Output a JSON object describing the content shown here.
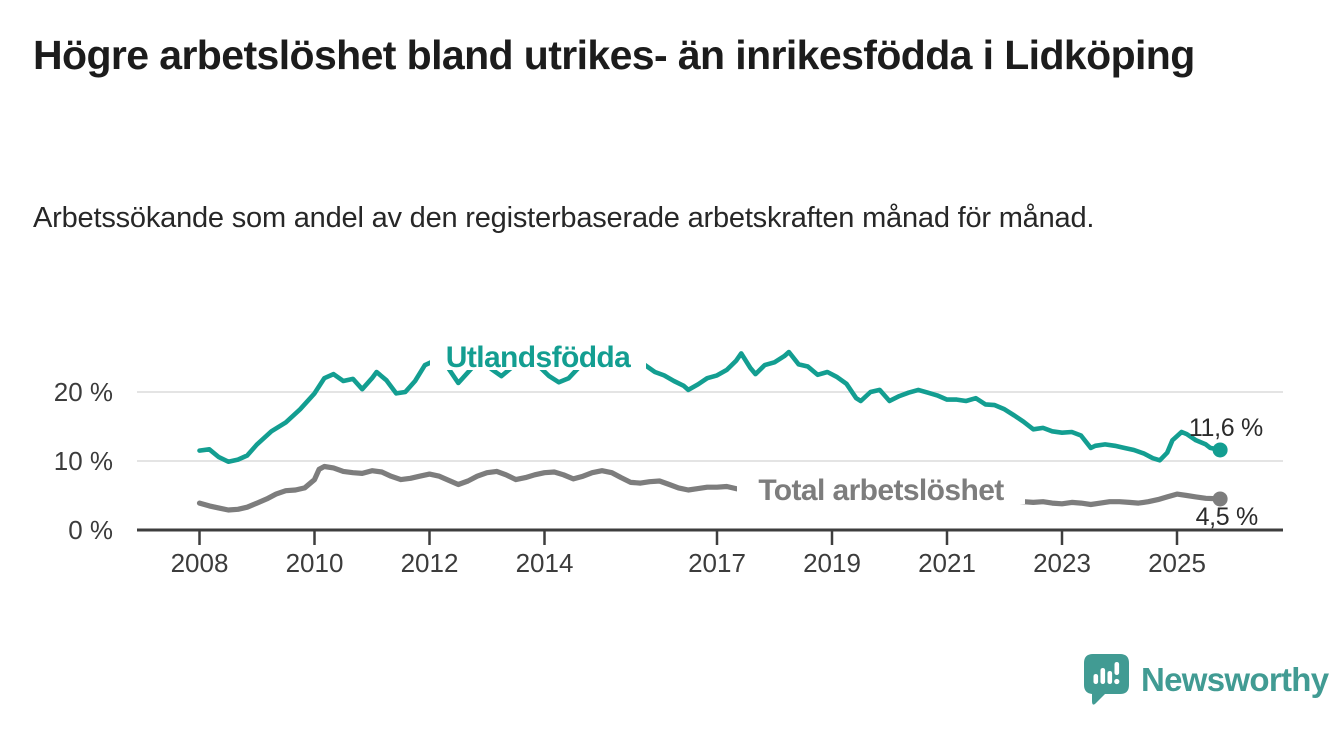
{
  "chart_data": {
    "type": "line",
    "title": "Högre arbetslöshet bland utrikes- än inrikesfödda i Lidköping",
    "subtitle": "Arbetssökande som andel av den registerbaserade arbetskraften månad för månad.",
    "grid": "horizontal",
    "legend_position": "inline-labels",
    "x_axis": {
      "ticks": [
        2008,
        2010,
        2012,
        2014,
        2017,
        2019,
        2021,
        2023,
        2025
      ],
      "range": [
        2007.9,
        2026.3
      ]
    },
    "y_axis": {
      "unit": "%",
      "tick_labels": [
        "0 %",
        "10 %",
        "20 %"
      ],
      "tick_values": [
        0,
        10,
        20
      ],
      "range": [
        0,
        27.5
      ]
    },
    "series": [
      {
        "name": "Utlandsfödda",
        "color": "#139e91",
        "end_label": "11,6 %",
        "end_value": 11.6,
        "points": [
          [
            2008.0,
            11.5
          ],
          [
            2008.17,
            11.7
          ],
          [
            2008.33,
            10.6
          ],
          [
            2008.5,
            9.9
          ],
          [
            2008.67,
            10.2
          ],
          [
            2008.83,
            10.8
          ],
          [
            2009.0,
            12.4
          ],
          [
            2009.25,
            14.3
          ],
          [
            2009.5,
            15.6
          ],
          [
            2009.75,
            17.5
          ],
          [
            2010.0,
            19.8
          ],
          [
            2010.17,
            22.0
          ],
          [
            2010.33,
            22.6
          ],
          [
            2010.5,
            21.6
          ],
          [
            2010.67,
            21.9
          ],
          [
            2010.83,
            20.4
          ],
          [
            2011.0,
            22.0
          ],
          [
            2011.08,
            22.9
          ],
          [
            2011.25,
            21.7
          ],
          [
            2011.42,
            19.8
          ],
          [
            2011.58,
            20.0
          ],
          [
            2011.75,
            21.6
          ],
          [
            2011.92,
            23.9
          ],
          [
            2012.08,
            24.5
          ],
          [
            2012.25,
            24.4
          ],
          [
            2012.5,
            21.3
          ],
          [
            2012.75,
            23.6
          ],
          [
            2012.92,
            24.3
          ],
          [
            2013.08,
            23.3
          ],
          [
            2013.25,
            22.3
          ],
          [
            2013.42,
            23.5
          ],
          [
            2013.58,
            24.4
          ],
          [
            2013.75,
            24.3
          ],
          [
            2013.92,
            23.6
          ],
          [
            2014.08,
            22.3
          ],
          [
            2014.25,
            21.4
          ],
          [
            2014.42,
            22.0
          ],
          [
            2014.58,
            23.4
          ],
          [
            2014.75,
            24.4
          ],
          [
            2014.92,
            24.6
          ],
          [
            2015.08,
            24.2
          ],
          [
            2015.25,
            24.5
          ],
          [
            2015.42,
            24.4
          ],
          [
            2015.58,
            24.6
          ],
          [
            2015.75,
            23.9
          ],
          [
            2015.92,
            22.9
          ],
          [
            2016.08,
            22.4
          ],
          [
            2016.25,
            21.6
          ],
          [
            2016.42,
            20.9
          ],
          [
            2016.5,
            20.3
          ],
          [
            2016.67,
            21.1
          ],
          [
            2016.83,
            22.0
          ],
          [
            2017.0,
            22.4
          ],
          [
            2017.17,
            23.2
          ],
          [
            2017.33,
            24.5
          ],
          [
            2017.42,
            25.6
          ],
          [
            2017.58,
            23.5
          ],
          [
            2017.67,
            22.6
          ],
          [
            2017.83,
            23.9
          ],
          [
            2018.0,
            24.3
          ],
          [
            2018.17,
            25.2
          ],
          [
            2018.25,
            25.8
          ],
          [
            2018.42,
            24.0
          ],
          [
            2018.58,
            23.7
          ],
          [
            2018.75,
            22.5
          ],
          [
            2018.92,
            22.9
          ],
          [
            2019.08,
            22.2
          ],
          [
            2019.25,
            21.2
          ],
          [
            2019.42,
            19.1
          ],
          [
            2019.5,
            18.7
          ],
          [
            2019.67,
            20.0
          ],
          [
            2019.83,
            20.3
          ],
          [
            2020.0,
            18.7
          ],
          [
            2020.17,
            19.4
          ],
          [
            2020.33,
            19.9
          ],
          [
            2020.5,
            20.3
          ],
          [
            2020.67,
            19.9
          ],
          [
            2020.83,
            19.5
          ],
          [
            2021.0,
            18.9
          ],
          [
            2021.17,
            18.9
          ],
          [
            2021.33,
            18.7
          ],
          [
            2021.5,
            19.1
          ],
          [
            2021.67,
            18.2
          ],
          [
            2021.83,
            18.1
          ],
          [
            2022.0,
            17.5
          ],
          [
            2022.17,
            16.6
          ],
          [
            2022.33,
            15.7
          ],
          [
            2022.5,
            14.6
          ],
          [
            2022.67,
            14.8
          ],
          [
            2022.83,
            14.3
          ],
          [
            2023.0,
            14.1
          ],
          [
            2023.17,
            14.2
          ],
          [
            2023.33,
            13.7
          ],
          [
            2023.5,
            11.9
          ],
          [
            2023.58,
            12.2
          ],
          [
            2023.75,
            12.4
          ],
          [
            2023.92,
            12.2
          ],
          [
            2024.08,
            11.9
          ],
          [
            2024.25,
            11.6
          ],
          [
            2024.42,
            11.1
          ],
          [
            2024.58,
            10.4
          ],
          [
            2024.7,
            10.1
          ],
          [
            2024.83,
            11.2
          ],
          [
            2024.92,
            13.0
          ],
          [
            2025.08,
            14.2
          ],
          [
            2025.17,
            13.9
          ],
          [
            2025.33,
            13.0
          ],
          [
            2025.5,
            12.4
          ],
          [
            2025.58,
            11.9
          ],
          [
            2025.75,
            11.6
          ]
        ]
      },
      {
        "name": "Total arbetslöshet",
        "color": "#7d7d7d",
        "end_label": "4,5 %",
        "end_value": 4.5,
        "points": [
          [
            2008.0,
            3.9
          ],
          [
            2008.17,
            3.5
          ],
          [
            2008.33,
            3.2
          ],
          [
            2008.5,
            2.9
          ],
          [
            2008.67,
            3.0
          ],
          [
            2008.83,
            3.3
          ],
          [
            2009.0,
            3.9
          ],
          [
            2009.17,
            4.5
          ],
          [
            2009.33,
            5.2
          ],
          [
            2009.5,
            5.7
          ],
          [
            2009.67,
            5.8
          ],
          [
            2009.83,
            6.1
          ],
          [
            2010.0,
            7.3
          ],
          [
            2010.08,
            8.8
          ],
          [
            2010.17,
            9.2
          ],
          [
            2010.33,
            9.0
          ],
          [
            2010.5,
            8.5
          ],
          [
            2010.67,
            8.3
          ],
          [
            2010.83,
            8.2
          ],
          [
            2011.0,
            8.6
          ],
          [
            2011.17,
            8.4
          ],
          [
            2011.33,
            7.8
          ],
          [
            2011.5,
            7.3
          ],
          [
            2011.67,
            7.5
          ],
          [
            2011.83,
            7.8
          ],
          [
            2012.0,
            8.1
          ],
          [
            2012.17,
            7.8
          ],
          [
            2012.33,
            7.2
          ],
          [
            2012.5,
            6.6
          ],
          [
            2012.67,
            7.1
          ],
          [
            2012.83,
            7.8
          ],
          [
            2013.0,
            8.3
          ],
          [
            2013.17,
            8.5
          ],
          [
            2013.33,
            8.0
          ],
          [
            2013.5,
            7.3
          ],
          [
            2013.67,
            7.6
          ],
          [
            2013.83,
            8.0
          ],
          [
            2014.0,
            8.3
          ],
          [
            2014.17,
            8.4
          ],
          [
            2014.33,
            8.0
          ],
          [
            2014.5,
            7.4
          ],
          [
            2014.67,
            7.8
          ],
          [
            2014.83,
            8.3
          ],
          [
            2015.0,
            8.6
          ],
          [
            2015.17,
            8.3
          ],
          [
            2015.33,
            7.6
          ],
          [
            2015.5,
            6.9
          ],
          [
            2015.67,
            6.8
          ],
          [
            2015.83,
            7.0
          ],
          [
            2016.0,
            7.1
          ],
          [
            2016.17,
            6.6
          ],
          [
            2016.33,
            6.1
          ],
          [
            2016.5,
            5.8
          ],
          [
            2016.67,
            6.0
          ],
          [
            2016.83,
            6.2
          ],
          [
            2017.0,
            6.2
          ],
          [
            2017.17,
            6.3
          ],
          [
            2017.33,
            6.0
          ],
          [
            2017.5,
            5.7
          ],
          [
            2017.67,
            5.8
          ],
          [
            2017.83,
            6.0
          ],
          [
            2018.0,
            6.1
          ],
          [
            2018.25,
            5.8
          ],
          [
            2018.5,
            5.4
          ],
          [
            2018.75,
            5.5
          ],
          [
            2019.0,
            5.6
          ],
          [
            2019.25,
            5.3
          ],
          [
            2019.5,
            5.0
          ],
          [
            2019.75,
            5.2
          ],
          [
            2020.0,
            5.5
          ],
          [
            2020.25,
            5.7
          ],
          [
            2020.5,
            5.9
          ],
          [
            2020.75,
            5.6
          ],
          [
            2021.0,
            5.4
          ],
          [
            2021.25,
            5.1
          ],
          [
            2021.5,
            4.9
          ],
          [
            2021.75,
            4.7
          ],
          [
            2022.0,
            4.4
          ],
          [
            2022.17,
            4.2
          ],
          [
            2022.33,
            4.1
          ],
          [
            2022.5,
            4.0
          ],
          [
            2022.67,
            4.1
          ],
          [
            2022.83,
            3.9
          ],
          [
            2023.0,
            3.8
          ],
          [
            2023.17,
            4.0
          ],
          [
            2023.33,
            3.9
          ],
          [
            2023.5,
            3.7
          ],
          [
            2023.67,
            3.9
          ],
          [
            2023.83,
            4.1
          ],
          [
            2024.0,
            4.1
          ],
          [
            2024.17,
            4.0
          ],
          [
            2024.33,
            3.9
          ],
          [
            2024.5,
            4.1
          ],
          [
            2024.67,
            4.4
          ],
          [
            2024.83,
            4.8
          ],
          [
            2025.0,
            5.2
          ],
          [
            2025.17,
            5.0
          ],
          [
            2025.33,
            4.8
          ],
          [
            2025.5,
            4.6
          ],
          [
            2025.75,
            4.5
          ]
        ]
      }
    ]
  },
  "branding": {
    "logo_text": "Newsworthy",
    "logo_color": "#419b93",
    "logo_icon": "newsworthy-speech-bubble-bar-chart-icon"
  },
  "colors": {
    "background": "#ffffff",
    "title": "#1c1c1c",
    "subtitle": "#272727",
    "axis_line": "#3e3e3e",
    "axis_text": "#3c3c3c",
    "gridline": "#dcdcdc",
    "foreign_born_line": "#139e91",
    "total_line": "#7d7d7d"
  }
}
